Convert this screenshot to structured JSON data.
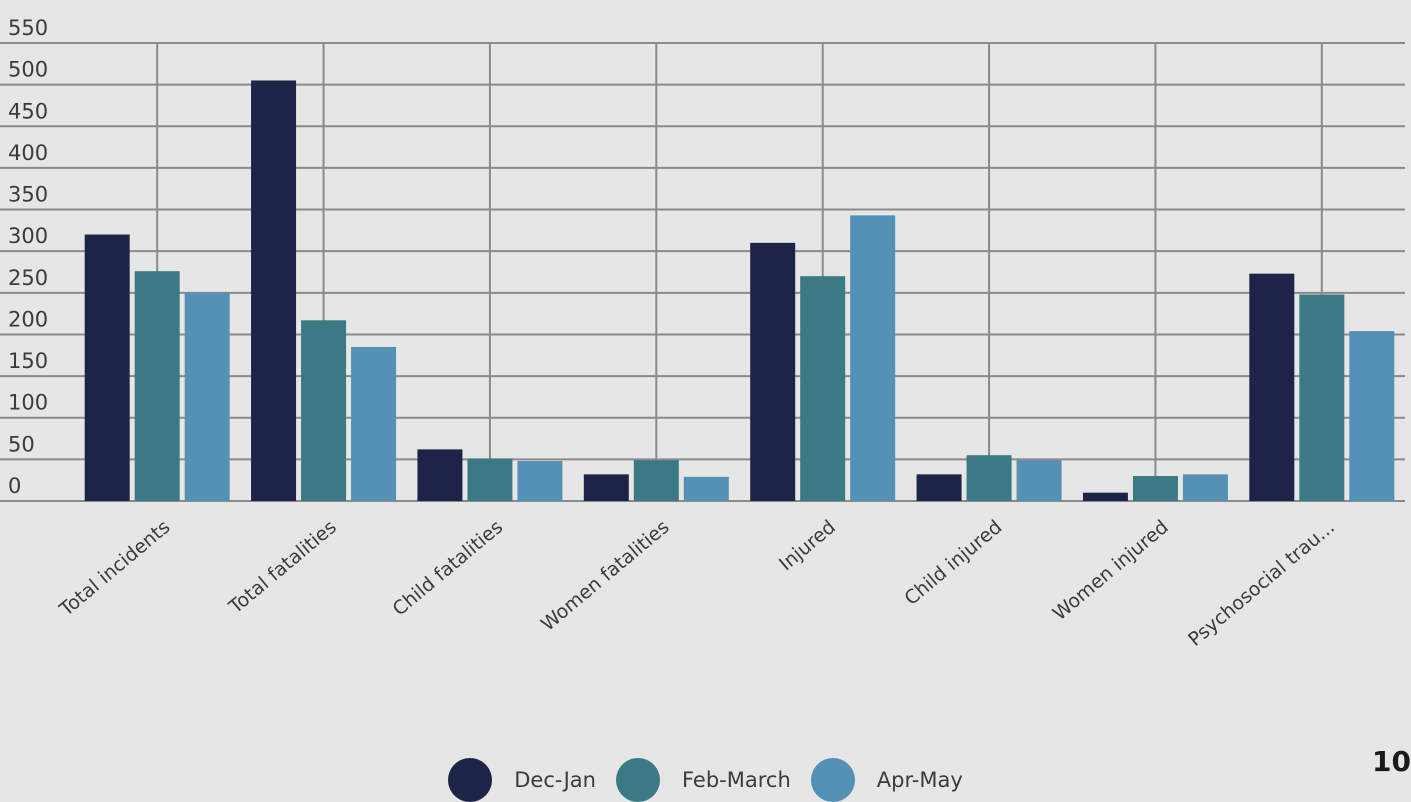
{
  "chart_data": {
    "type": "bar",
    "title": "",
    "xlabel": "",
    "ylabel": "",
    "ylim": [
      0,
      550
    ],
    "yticks": [
      0,
      50,
      100,
      150,
      200,
      250,
      300,
      350,
      400,
      450,
      500,
      550
    ],
    "ytick_labels": [
      "0",
      "50",
      "100",
      "150",
      "200",
      "250",
      "300",
      "350",
      "400",
      "450",
      "500",
      "550"
    ],
    "categories": [
      "Total incidents",
      "Total fatalities",
      "Child fatalities",
      "Women fatalities",
      "Injured",
      "Child injured",
      "Women injured",
      "Psychosocial trau..."
    ],
    "series": [
      {
        "name": "Dec-Jan",
        "color": "#1e2447",
        "values": [
          320,
          505,
          62,
          32,
          310,
          32,
          10,
          273
        ]
      },
      {
        "name": "Feb-March",
        "color": "#3b7a85",
        "values": [
          276,
          217,
          51,
          49,
          270,
          55,
          30,
          248
        ]
      },
      {
        "name": "Apr-May",
        "color": "#5590b5",
        "values": [
          250,
          185,
          48,
          29,
          343,
          49,
          32,
          204
        ]
      }
    ],
    "grid": true,
    "legend_position": "bottom"
  },
  "page_number": "10"
}
